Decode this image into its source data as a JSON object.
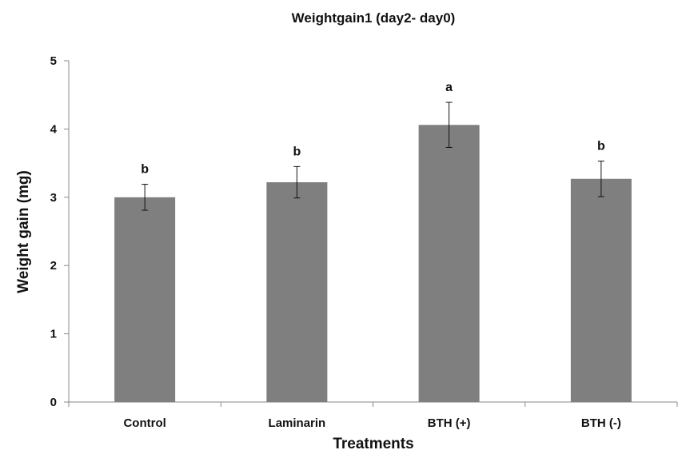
{
  "chart_data": {
    "type": "bar",
    "title": "Weightgain1 (day2- day0)",
    "xlabel": "Treatments",
    "ylabel": "Weight gain (mg)",
    "ylim": [
      0,
      5
    ],
    "yticks": [
      "0",
      "1",
      "2",
      "3",
      "4",
      "5"
    ],
    "categories": [
      "Control",
      "Laminarin",
      "BTH (+)",
      "BTH (-)"
    ],
    "values": [
      3.0,
      3.22,
      4.06,
      3.27
    ],
    "error": [
      0.19,
      0.23,
      0.33,
      0.26
    ],
    "significance": [
      "b",
      "b",
      "a",
      "b"
    ],
    "grid": false,
    "legend": "none",
    "colors": {
      "bar": "#7f7f7f",
      "axis": "#888888",
      "text": "#111111",
      "error": "#111111"
    }
  }
}
